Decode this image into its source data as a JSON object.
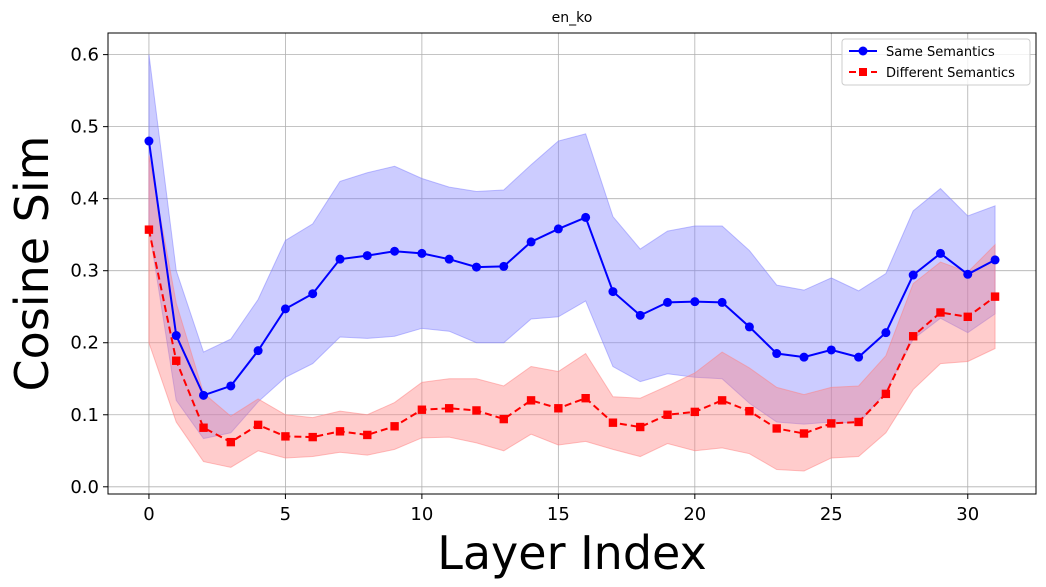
{
  "chart_data": {
    "type": "line",
    "title": "en_ko",
    "xlabel": "Layer Index",
    "ylabel": "Cosine Sim",
    "xlim": [
      -1.5,
      32.5
    ],
    "ylim": [
      -0.01,
      0.63
    ],
    "xticks": [
      0,
      5,
      10,
      15,
      20,
      25,
      30
    ],
    "yticks": [
      0.0,
      0.1,
      0.2,
      0.3,
      0.4,
      0.5,
      0.6
    ],
    "xtick_labels": [
      "0",
      "5",
      "10",
      "15",
      "20",
      "25",
      "30"
    ],
    "ytick_labels": [
      "0.0",
      "0.1",
      "0.2",
      "0.3",
      "0.4",
      "0.5",
      "0.6"
    ],
    "grid": true,
    "legend_position": "top-right",
    "x": [
      0,
      1,
      2,
      3,
      4,
      5,
      6,
      7,
      8,
      9,
      10,
      11,
      12,
      13,
      14,
      15,
      16,
      17,
      18,
      19,
      20,
      21,
      22,
      23,
      24,
      25,
      26,
      27,
      28,
      29,
      30,
      31
    ],
    "series": [
      {
        "name": "Same Semantics",
        "color": "#0000ff",
        "band_color": "#8080ff",
        "marker": "circle",
        "linestyle": "solid",
        "values": [
          0.48,
          0.21,
          0.127,
          0.14,
          0.189,
          0.247,
          0.268,
          0.316,
          0.321,
          0.327,
          0.324,
          0.316,
          0.305,
          0.306,
          0.34,
          0.358,
          0.374,
          0.271,
          0.238,
          0.256,
          0.257,
          0.256,
          0.222,
          0.185,
          0.18,
          0.19,
          0.18,
          0.214,
          0.294,
          0.324,
          0.295,
          0.315
        ],
        "upper": [
          0.6,
          0.3,
          0.187,
          0.205,
          0.26,
          0.342,
          0.365,
          0.424,
          0.436,
          0.445,
          0.428,
          0.416,
          0.41,
          0.412,
          0.447,
          0.48,
          0.49,
          0.375,
          0.33,
          0.355,
          0.362,
          0.362,
          0.328,
          0.28,
          0.273,
          0.29,
          0.272,
          0.296,
          0.383,
          0.414,
          0.376,
          0.39
        ],
        "lower": [
          0.36,
          0.12,
          0.067,
          0.075,
          0.118,
          0.152,
          0.171,
          0.208,
          0.206,
          0.209,
          0.22,
          0.216,
          0.2,
          0.2,
          0.233,
          0.236,
          0.258,
          0.167,
          0.146,
          0.157,
          0.152,
          0.15,
          0.116,
          0.09,
          0.087,
          0.09,
          0.088,
          0.132,
          0.205,
          0.234,
          0.214,
          0.24
        ]
      },
      {
        "name": "Different Semantics",
        "color": "#ff0000",
        "band_color": "#ff8080",
        "marker": "square",
        "linestyle": "dashed",
        "values": [
          0.357,
          0.175,
          0.082,
          0.062,
          0.086,
          0.07,
          0.069,
          0.077,
          0.072,
          0.084,
          0.107,
          0.109,
          0.106,
          0.094,
          0.12,
          0.109,
          0.123,
          0.089,
          0.083,
          0.1,
          0.104,
          0.12,
          0.105,
          0.081,
          0.074,
          0.088,
          0.09,
          0.129,
          0.209,
          0.242,
          0.236,
          0.264
        ],
        "upper": [
          0.46,
          0.255,
          0.13,
          0.098,
          0.122,
          0.1,
          0.096,
          0.105,
          0.1,
          0.117,
          0.145,
          0.15,
          0.15,
          0.14,
          0.167,
          0.16,
          0.185,
          0.125,
          0.123,
          0.14,
          0.158,
          0.187,
          0.165,
          0.138,
          0.128,
          0.138,
          0.14,
          0.182,
          0.282,
          0.312,
          0.298,
          0.336
        ],
        "lower": [
          0.2,
          0.09,
          0.035,
          0.027,
          0.05,
          0.04,
          0.042,
          0.048,
          0.044,
          0.052,
          0.068,
          0.069,
          0.061,
          0.05,
          0.073,
          0.058,
          0.063,
          0.052,
          0.042,
          0.06,
          0.05,
          0.054,
          0.046,
          0.024,
          0.022,
          0.04,
          0.042,
          0.075,
          0.135,
          0.171,
          0.174,
          0.192
        ]
      }
    ]
  }
}
